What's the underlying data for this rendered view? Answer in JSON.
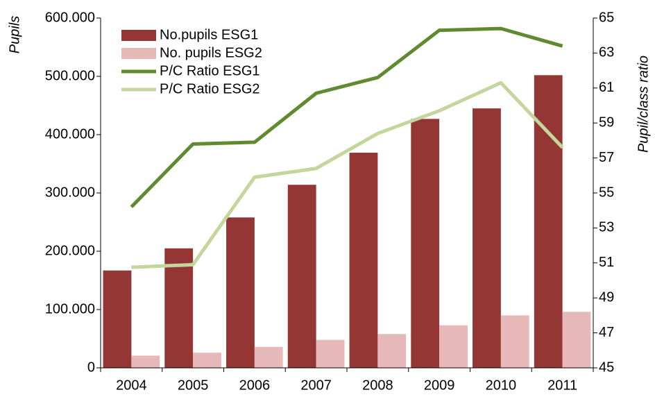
{
  "chart_data": {
    "type": "bar_line",
    "categories": [
      "2004",
      "2005",
      "2006",
      "2007",
      "2008",
      "2009",
      "2010",
      "2011"
    ],
    "ylabel": "Pupils",
    "y2label": "Pupil/class ratio",
    "ylim": [
      0,
      600000
    ],
    "yticks": [
      0,
      {
        "value": 100000,
        "label": "100.000"
      },
      {
        "value": 200000,
        "label": "200.000"
      },
      {
        "value": 300000,
        "label": "300.000"
      },
      {
        "value": 400000,
        "label": "400.000"
      },
      {
        "value": 500000,
        "label": "500.000"
      },
      {
        "value": 600000,
        "label": "600.000"
      }
    ],
    "y2lim": [
      45,
      65
    ],
    "y2ticks": [
      45,
      47,
      49,
      51,
      53,
      55,
      57,
      59,
      61,
      63,
      65
    ],
    "series": [
      {
        "name": "No.pupils ESG1",
        "kind": "bar",
        "color": "#943634",
        "values": [
          167000,
          205000,
          258000,
          314000,
          369000,
          427000,
          445000,
          502000
        ]
      },
      {
        "name": "No. pupils ESG2",
        "kind": "bar",
        "color": "#e6b9b8",
        "values": [
          21000,
          26000,
          36000,
          48000,
          58000,
          73000,
          90000,
          96000
        ]
      },
      {
        "name": "P/C Ratio ESG1",
        "kind": "line",
        "axis": "y2",
        "color": "#5f8a2f",
        "values": [
          54.2,
          57.8,
          57.9,
          60.7,
          61.6,
          64.3,
          64.4,
          63.4
        ]
      },
      {
        "name": "P/C Ratio ESG2",
        "kind": "line",
        "axis": "y2",
        "color": "#c3d69b",
        "values": [
          50.75,
          50.9,
          55.9,
          56.4,
          58.4,
          59.7,
          61.3,
          57.6
        ]
      }
    ],
    "legend": "upper left"
  }
}
